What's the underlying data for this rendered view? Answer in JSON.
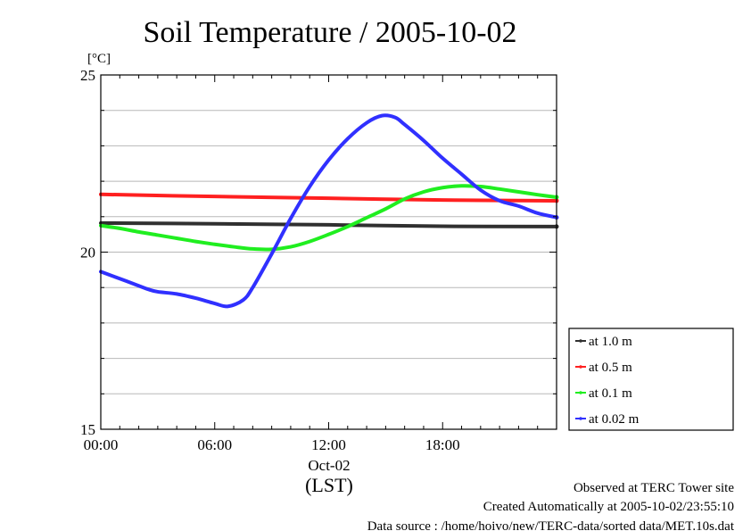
{
  "chart_data": {
    "type": "line",
    "title": "Soil Temperature / 2005-10-02",
    "ylabel": "[°C]",
    "xlabel": "(LST)",
    "date_label": "Oct-02",
    "ylim": [
      15,
      25
    ],
    "xlim": [
      0,
      24
    ],
    "y_ticks": [
      15,
      20,
      25
    ],
    "y_tick_labels": [
      "15",
      "20",
      "25"
    ],
    "x_ticks": [
      0,
      6,
      12,
      18
    ],
    "x_tick_labels": [
      "00:00",
      "06:00",
      "12:00",
      "18:00"
    ],
    "grid": true,
    "legend_position": "right",
    "series": [
      {
        "name": "at 1.0 m",
        "color": "#303030",
        "x": [
          0,
          6,
          12,
          18,
          24
        ],
        "y": [
          20.82,
          20.8,
          20.77,
          20.73,
          20.72
        ]
      },
      {
        "name": "at 0.5 m",
        "color": "#ff2020",
        "x": [
          0,
          6,
          12,
          18,
          24
        ],
        "y": [
          21.63,
          21.57,
          21.52,
          21.47,
          21.45
        ]
      },
      {
        "name": "at 0.1 m",
        "color": "#20ee20",
        "x": [
          0,
          1,
          2,
          3,
          4,
          5,
          6,
          7,
          8,
          9,
          10,
          11,
          12,
          13,
          14,
          15,
          16,
          17,
          18,
          19,
          20,
          21,
          22,
          23,
          24
        ],
        "y": [
          20.75,
          20.67,
          20.57,
          20.48,
          20.39,
          20.3,
          20.22,
          20.15,
          20.09,
          20.08,
          20.15,
          20.3,
          20.5,
          20.72,
          20.97,
          21.22,
          21.5,
          21.7,
          21.82,
          21.87,
          21.85,
          21.78,
          21.7,
          21.62,
          21.55
        ]
      },
      {
        "name": "at 0.02 m",
        "color": "#3030ff",
        "x": [
          0,
          1,
          2,
          2.5,
          3,
          4,
          5,
          6,
          6.7,
          7.5,
          8,
          9,
          10,
          11,
          12,
          13,
          14,
          14.8,
          15.5,
          16,
          17,
          18,
          19,
          20,
          21,
          22,
          23,
          24
        ],
        "y": [
          19.45,
          19.25,
          19.05,
          18.95,
          18.88,
          18.82,
          18.7,
          18.55,
          18.47,
          18.65,
          19,
          19.95,
          20.95,
          21.85,
          22.6,
          23.2,
          23.65,
          23.85,
          23.8,
          23.6,
          23.15,
          22.65,
          22.2,
          21.75,
          21.45,
          21.3,
          21.1,
          20.98
        ]
      }
    ]
  },
  "footer": {
    "line1": "Observed at TERC Tower site",
    "line2": "Created Automatically at 2005-10-02/23:55:10",
    "line3": "Data source : /home/hoivo/new/TERC-data/sorted  data/MET.10s.dat"
  }
}
